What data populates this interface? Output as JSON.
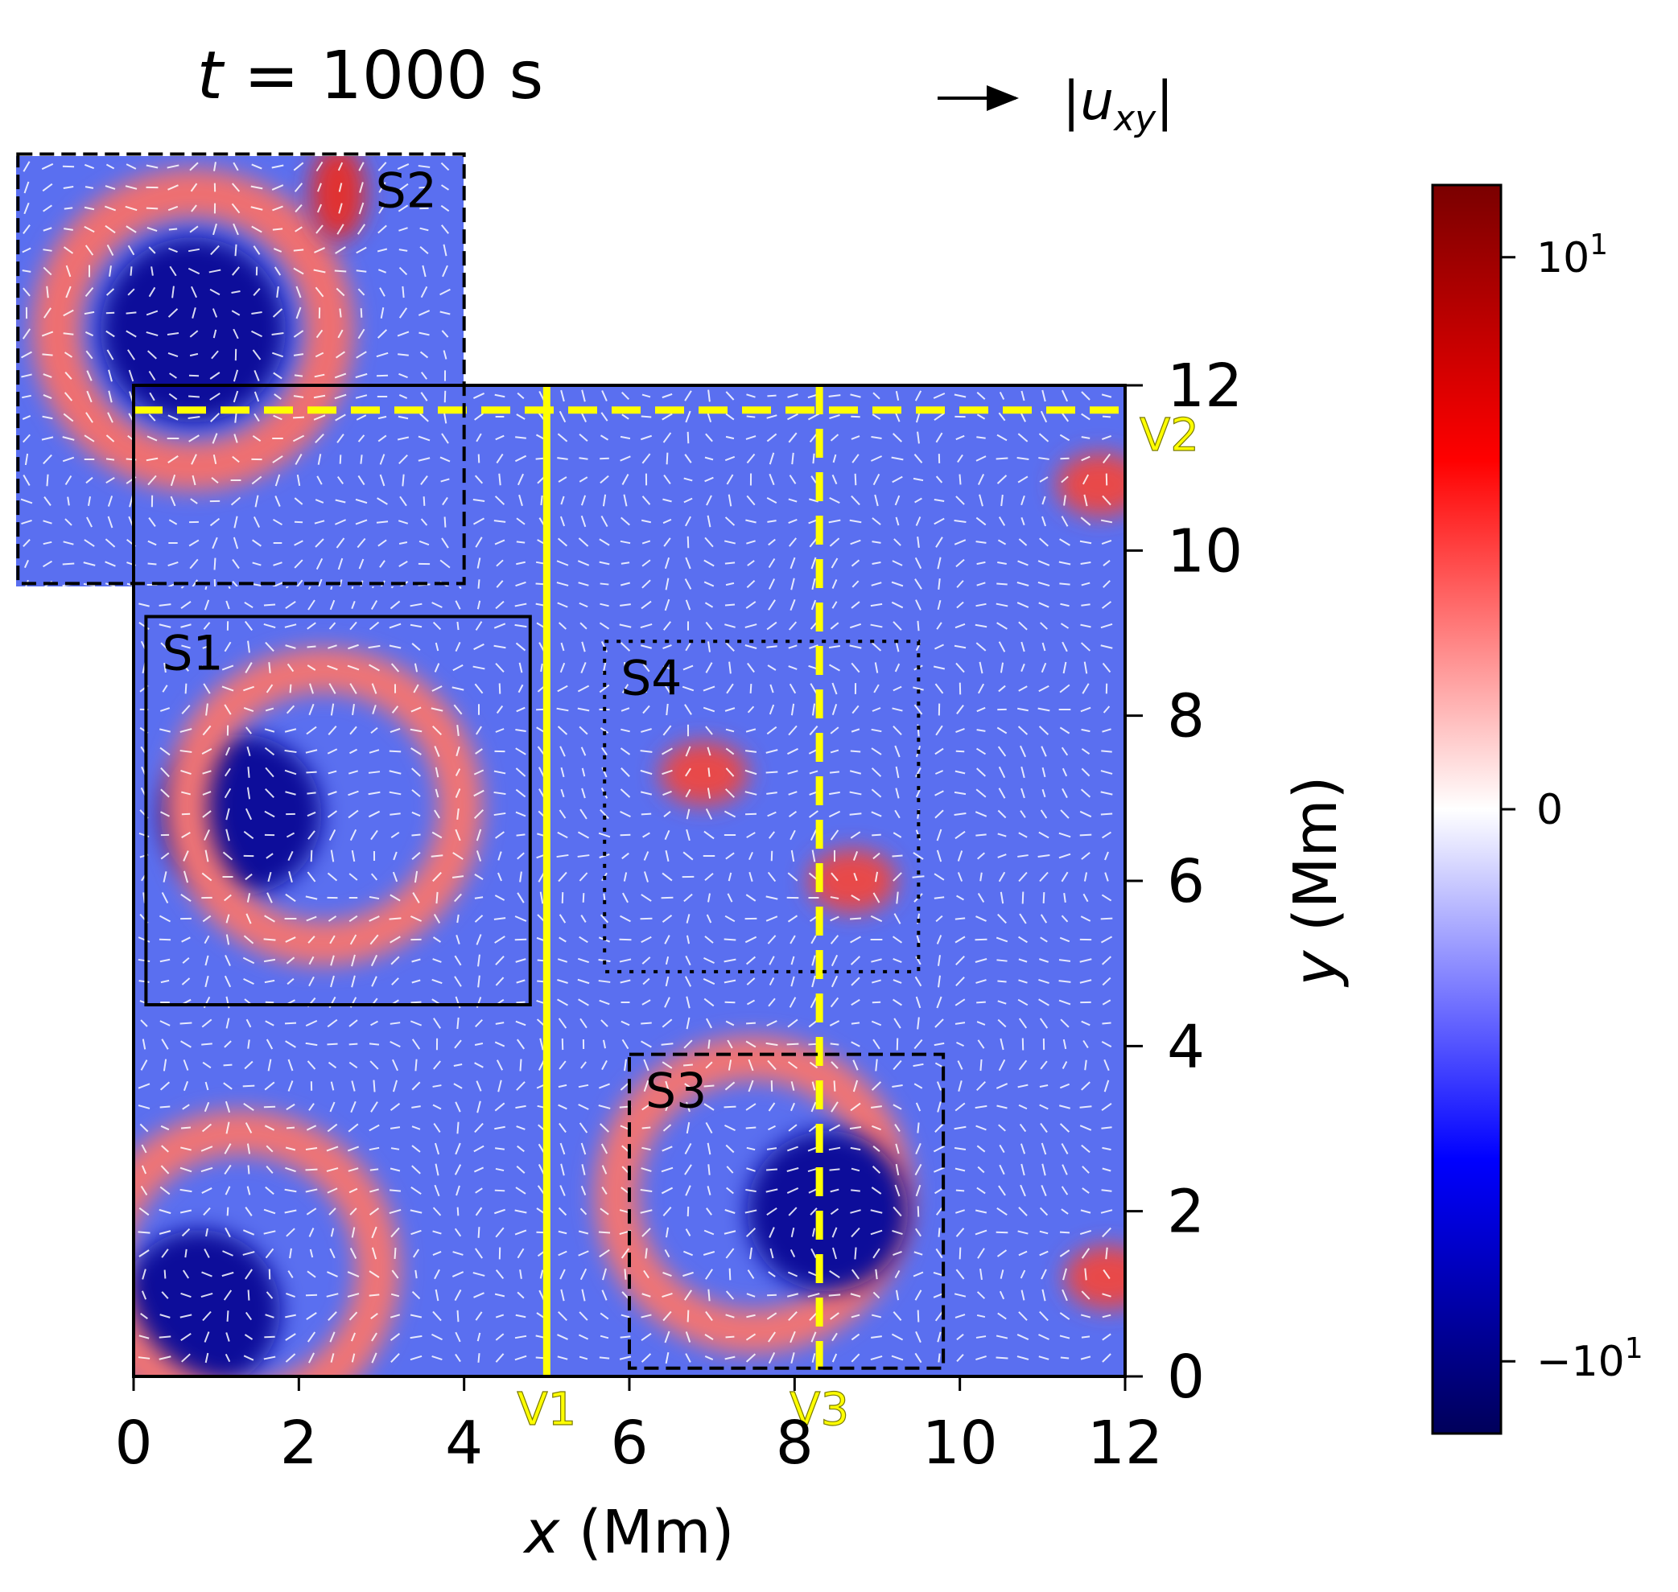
{
  "chart_data": {
    "type": "heatmap",
    "title": "t = 1000 s",
    "title_var": "t",
    "title_rest": " = 1000 s",
    "xlabel": "x (Mm)",
    "xlabel_var": "x",
    "xlabel_rest": " (Mm)",
    "ylabel": "y (Mm)",
    "ylabel_var": "y",
    "ylabel_rest": " (Mm)",
    "xlim": [
      0,
      12
    ],
    "ylim": [
      0,
      12
    ],
    "x_ticks": [
      0,
      2,
      4,
      6,
      8,
      10,
      12
    ],
    "y_ticks": [
      0,
      2,
      4,
      6,
      8,
      10,
      12
    ],
    "y_axis_side": "right",
    "quiver_key_label": "|u",
    "quiver_key_sub": "xy",
    "quiver_key_tail": "|",
    "colorbar": {
      "scale": "symlog",
      "range": [
        -20,
        20
      ],
      "ticks": [
        {
          "value": 10,
          "base": "10",
          "exp": "1",
          "sign": ""
        },
        {
          "value": 0,
          "base": "0",
          "exp": "",
          "sign": ""
        },
        {
          "value": -10,
          "base": "10",
          "exp": "1",
          "sign": "−"
        }
      ],
      "colors": [
        "#00005a",
        "#0000ff",
        "#ffffff",
        "#ff0000",
        "#7a0000"
      ]
    },
    "regions": [
      {
        "label": "S1",
        "x": [
          0.15,
          4.8
        ],
        "y": [
          4.5,
          9.2
        ],
        "style": "solid"
      },
      {
        "label": "S2",
        "x": [
          -1.4,
          4.0
        ],
        "y": [
          9.6,
          14.8
        ],
        "style": "dashed"
      },
      {
        "label": "S3",
        "x": [
          6.0,
          9.8
        ],
        "y": [
          0.1,
          3.9
        ],
        "style": "dashed"
      },
      {
        "label": "S4",
        "x": [
          5.7,
          9.5
        ],
        "y": [
          4.9,
          8.9
        ],
        "style": "dotted"
      }
    ],
    "cuts": [
      {
        "label": "V1",
        "orientation": "vertical",
        "value": 5.0,
        "style": "solid"
      },
      {
        "label": "V2",
        "orientation": "horizontal",
        "value": 11.7,
        "style": "dashed"
      },
      {
        "label": "V3",
        "orientation": "vertical",
        "value": 8.3,
        "style": "dashed"
      }
    ],
    "features": [
      {
        "kind": "vortex",
        "x": 0.8,
        "y": 0.8,
        "sign": "negative"
      },
      {
        "kind": "ring",
        "x": 1.3,
        "y": 1.3,
        "sign": "positive"
      },
      {
        "kind": "vortex",
        "x": 1.3,
        "y": 6.8,
        "sign": "negative"
      },
      {
        "kind": "ring",
        "x": 2.3,
        "y": 6.9,
        "sign": "positive"
      },
      {
        "kind": "ring",
        "x": 7.5,
        "y": 2.2,
        "sign": "positive"
      },
      {
        "kind": "vortex",
        "x": 8.4,
        "y": 2.0,
        "sign": "negative"
      },
      {
        "kind": "blob",
        "x": 8.7,
        "y": 6.0,
        "sign": "positive"
      },
      {
        "kind": "blob",
        "x": 6.9,
        "y": 7.3,
        "sign": "positive"
      },
      {
        "kind": "blob",
        "x": 11.7,
        "y": 10.8,
        "sign": "positive"
      },
      {
        "kind": "blob",
        "x": 11.8,
        "y": 1.2,
        "sign": "positive"
      }
    ]
  }
}
